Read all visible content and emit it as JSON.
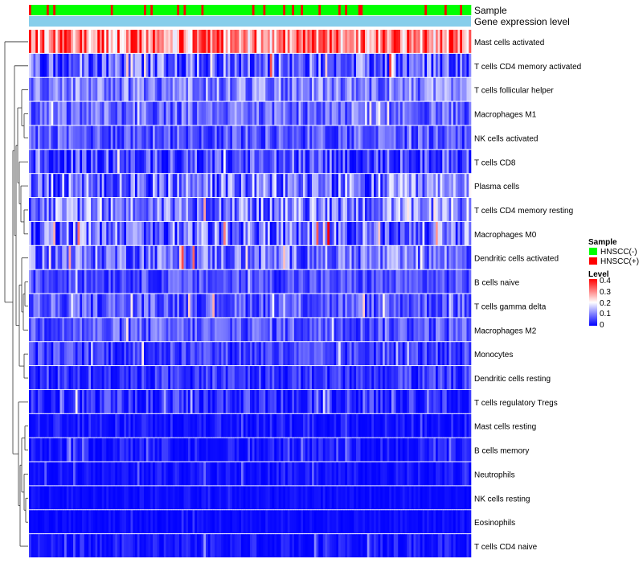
{
  "chart_data": {
    "type": "heatmap",
    "annotations": {
      "sample_label": "Sample",
      "level_label": "Gene expression level"
    },
    "rows": [
      {
        "name": "Mast cells activated",
        "mean": 0.3,
        "spread": 0.12
      },
      {
        "name": "T cells CD4 memory activated",
        "mean": 0.07,
        "spread": 0.1
      },
      {
        "name": "T cells follicular helper",
        "mean": 0.1,
        "spread": 0.07
      },
      {
        "name": "Macrophages M1",
        "mean": 0.08,
        "spread": 0.06
      },
      {
        "name": "NK cells activated",
        "mean": 0.07,
        "spread": 0.06
      },
      {
        "name": "T cells CD8",
        "mean": 0.06,
        "spread": 0.08
      },
      {
        "name": "Plasma cells",
        "mean": 0.09,
        "spread": 0.1
      },
      {
        "name": "T cells CD4 memory resting",
        "mean": 0.1,
        "spread": 0.09
      },
      {
        "name": "Macrophages M0",
        "mean": 0.08,
        "spread": 0.1
      },
      {
        "name": "Dendritic cells activated",
        "mean": 0.09,
        "spread": 0.08
      },
      {
        "name": "B cells naive",
        "mean": 0.06,
        "spread": 0.05
      },
      {
        "name": "T cells gamma delta",
        "mean": 0.07,
        "spread": 0.06
      },
      {
        "name": "Macrophages M2",
        "mean": 0.07,
        "spread": 0.06
      },
      {
        "name": "Monocytes",
        "mean": 0.05,
        "spread": 0.05
      },
      {
        "name": "Dendritic cells resting",
        "mean": 0.04,
        "spread": 0.05
      },
      {
        "name": "T cells regulatory  Tregs",
        "mean": 0.03,
        "spread": 0.06
      },
      {
        "name": "Mast cells resting",
        "mean": 0.01,
        "spread": 0.04
      },
      {
        "name": "B cells memory",
        "mean": 0.01,
        "spread": 0.04
      },
      {
        "name": "Neutrophils",
        "mean": 0.01,
        "spread": 0.03
      },
      {
        "name": "NK cells resting",
        "mean": 0.005,
        "spread": 0.02
      },
      {
        "name": "Eosinophils",
        "mean": 0.005,
        "spread": 0.02
      },
      {
        "name": "T cells CD4 naive",
        "mean": 0.01,
        "spread": 0.04
      }
    ],
    "n_samples": 200,
    "sample_groups": [
      "HNSCC(-)",
      "HNSCC(+)"
    ],
    "sample_group_fraction_positive": 0.13,
    "color_scale": {
      "min": 0,
      "max": 0.4,
      "low_color": "#0000ff",
      "mid_color": "#ffffff",
      "high_color": "#ff0000",
      "mid_value": 0.2
    },
    "legend": {
      "sample": {
        "title": "Sample",
        "items": [
          {
            "label": "HNSCC(-)",
            "color": "#00ff00"
          },
          {
            "label": "HNSCC(+)",
            "color": "#ff0000"
          }
        ]
      },
      "level": {
        "title": "Level",
        "ticks": [
          "0.4",
          "0.3",
          "0.2",
          "0.1",
          "0"
        ]
      }
    },
    "colors": {
      "sample_negative": "#00ff00",
      "sample_positive": "#ff0000",
      "level_bar": "#87ceeb"
    }
  }
}
